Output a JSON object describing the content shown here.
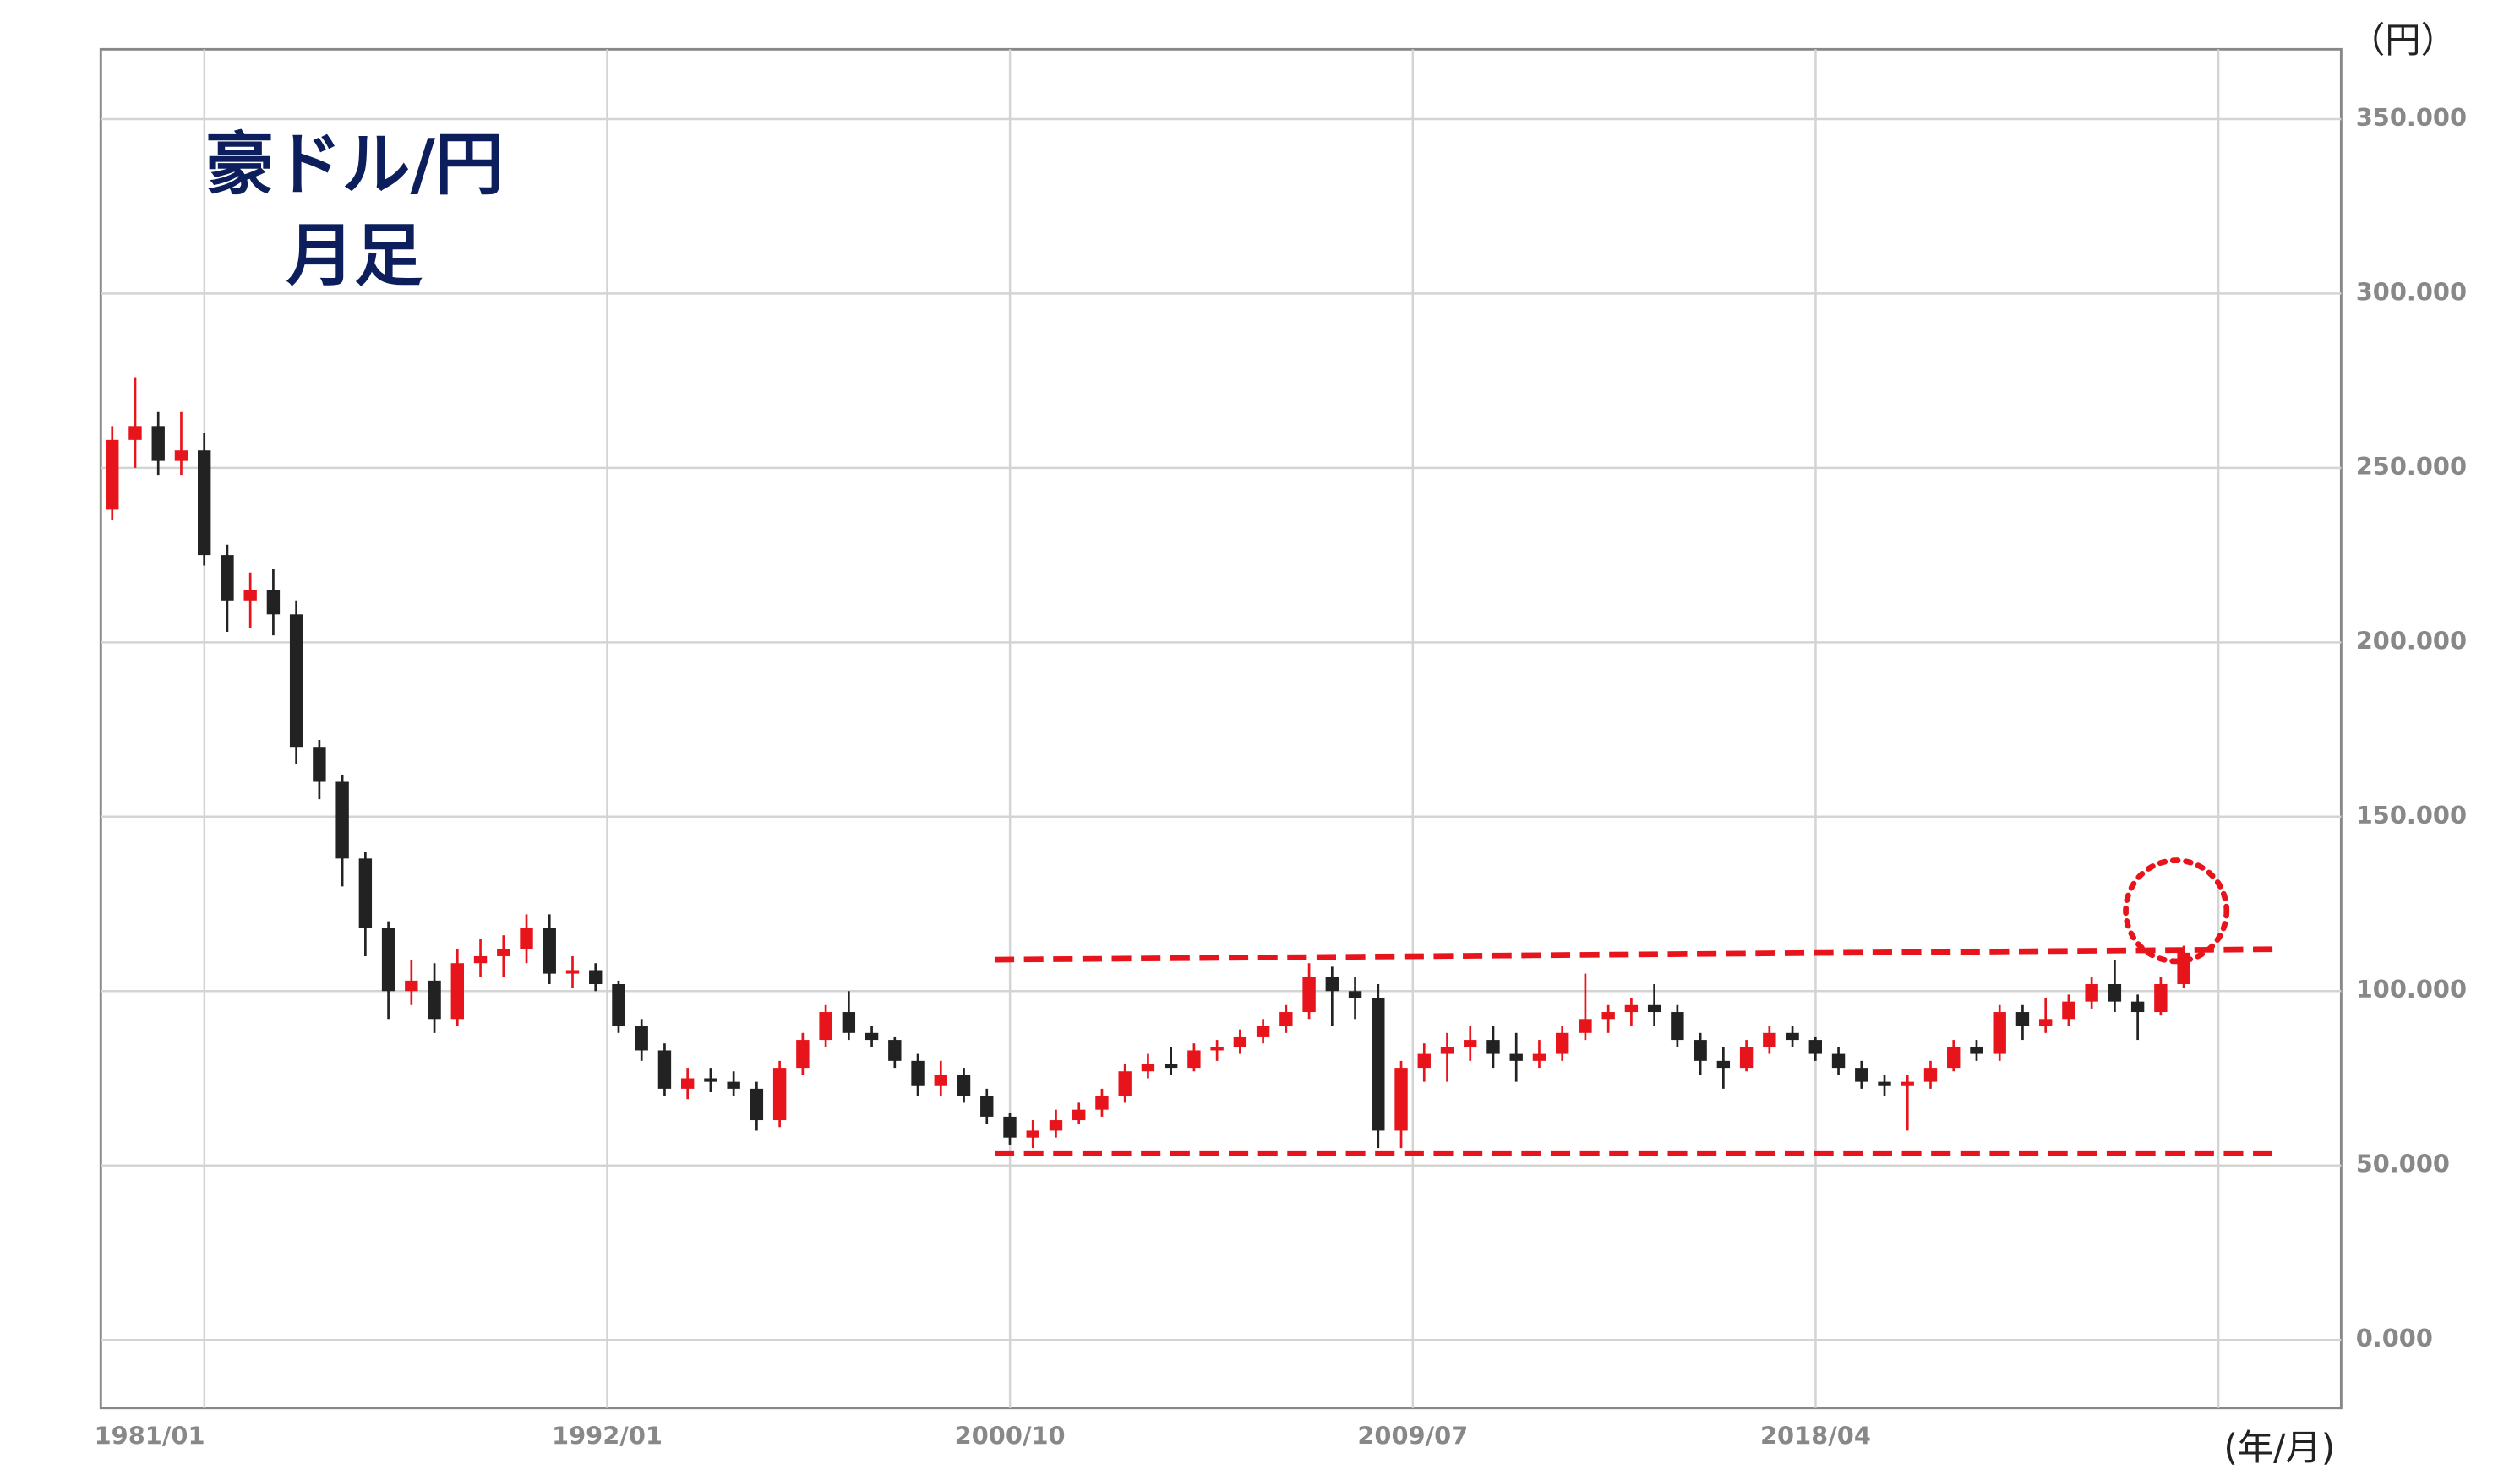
{
  "chart_data": {
    "type": "candlestick",
    "title": [
      "豪ドル/円",
      "月足"
    ],
    "y_unit": "（円）",
    "x_unit": "(年/月)",
    "up_color": "#e8141c",
    "down_color": "#222222",
    "xlim": [
      "1981/01",
      "2029/09"
    ],
    "xticks": [
      "1981/01",
      "1992/01",
      "2000/10",
      "2009/07",
      "2018/04"
    ],
    "xgrid": [
      "1983/04",
      "1992/01",
      "2000/10",
      "2009/07",
      "2018/04",
      "2027/01"
    ],
    "ylim": [
      -19.5,
      370
    ],
    "yticks": [
      {
        "value": 0,
        "label": "0.000"
      },
      {
        "value": 50,
        "label": "50.000"
      },
      {
        "value": 100,
        "label": "100.000"
      },
      {
        "value": 150,
        "label": "150.000"
      },
      {
        "value": 200,
        "label": "200.000"
      },
      {
        "value": 250,
        "label": "250.000"
      },
      {
        "value": 300,
        "label": "300.000"
      },
      {
        "value": 350,
        "label": "350.000"
      }
    ],
    "grid": true,
    "x": [
      "1981/01",
      "1981/07",
      "1982/01",
      "1982/07",
      "1983/01",
      "1983/07",
      "1984/01",
      "1984/07",
      "1985/01",
      "1985/07",
      "1986/01",
      "1986/07",
      "1987/01",
      "1987/07",
      "1988/01",
      "1988/07",
      "1989/01",
      "1989/07",
      "1990/01",
      "1990/07",
      "1991/01",
      "1991/07",
      "1992/01",
      "1992/07",
      "1993/01",
      "1993/07",
      "1994/01",
      "1994/07",
      "1995/01",
      "1995/07",
      "1996/01",
      "1996/07",
      "1997/01",
      "1997/07",
      "1998/01",
      "1998/07",
      "1999/01",
      "1999/07",
      "2000/01",
      "2000/07",
      "2001/01",
      "2001/07",
      "2002/01",
      "2002/07",
      "2003/01",
      "2003/07",
      "2004/01",
      "2004/07",
      "2005/01",
      "2005/07",
      "2006/01",
      "2006/07",
      "2007/01",
      "2007/07",
      "2008/01",
      "2008/07",
      "2009/01",
      "2009/07",
      "2010/01",
      "2010/07",
      "2011/01",
      "2011/07",
      "2012/01",
      "2012/07",
      "2013/01",
      "2013/07",
      "2014/01",
      "2014/07",
      "2015/01",
      "2015/07",
      "2016/01",
      "2016/07",
      "2017/01",
      "2017/07",
      "2018/01",
      "2018/07",
      "2019/01",
      "2019/07",
      "2020/01",
      "2020/07",
      "2021/01",
      "2021/07",
      "2022/01",
      "2022/07",
      "2023/01",
      "2023/07",
      "2024/01",
      "2024/07",
      "2025/01",
      "2025/07",
      "2026/01"
    ],
    "open": [
      238,
      258,
      262,
      252,
      255,
      225,
      212,
      215,
      208,
      170,
      160,
      138,
      118,
      100,
      103,
      92,
      108,
      110,
      112,
      118,
      105,
      106,
      102,
      90,
      83,
      72,
      75,
      74,
      72,
      63,
      78,
      86,
      94,
      88,
      86,
      80,
      73,
      76,
      70,
      64,
      58,
      60,
      63,
      66,
      70,
      77,
      79,
      78,
      83,
      84,
      87,
      90,
      94,
      104,
      100,
      98,
      60,
      78,
      82,
      84,
      86,
      82,
      80,
      82,
      88,
      92,
      94,
      96,
      94,
      86,
      80,
      78,
      84,
      88,
      86,
      82,
      78,
      74,
      73,
      74,
      78,
      84,
      82,
      94,
      90,
      92,
      97,
      102,
      97,
      94,
      102
    ],
    "high": [
      262,
      276,
      266,
      266,
      260,
      228,
      220,
      221,
      212,
      172,
      162,
      140,
      120,
      109,
      108,
      112,
      115,
      116,
      122,
      122,
      110,
      108,
      103,
      92,
      85,
      78,
      78,
      77,
      74,
      80,
      88,
      96,
      100,
      90,
      87,
      82,
      80,
      78,
      72,
      65,
      63,
      66,
      68,
      72,
      79,
      82,
      84,
      85,
      86,
      89,
      92,
      96,
      108,
      107,
      104,
      102,
      80,
      85,
      88,
      90,
      90,
      88,
      86,
      90,
      105,
      96,
      98,
      102,
      96,
      88,
      84,
      86,
      90,
      90,
      87,
      84,
      80,
      76,
      76,
      80,
      86,
      86,
      96,
      96,
      98,
      99,
      104,
      109,
      99,
      104,
      113
    ],
    "low": [
      235,
      250,
      248,
      248,
      222,
      203,
      204,
      202,
      165,
      155,
      130,
      110,
      92,
      96,
      88,
      90,
      104,
      104,
      108,
      102,
      101,
      100,
      88,
      80,
      70,
      69,
      71,
      70,
      60,
      61,
      76,
      84,
      86,
      84,
      78,
      70,
      70,
      68,
      62,
      56,
      55,
      58,
      62,
      64,
      68,
      75,
      76,
      77,
      80,
      82,
      85,
      88,
      92,
      90,
      92,
      55,
      55,
      74,
      74,
      80,
      78,
      74,
      78,
      80,
      86,
      88,
      90,
      90,
      84,
      76,
      72,
      77,
      82,
      84,
      80,
      76,
      72,
      70,
      60,
      72,
      77,
      80,
      80,
      86,
      88,
      90,
      95,
      94,
      86,
      93,
      101
    ],
    "close": [
      258,
      262,
      252,
      255,
      225,
      212,
      215,
      208,
      170,
      160,
      138,
      118,
      100,
      103,
      92,
      108,
      110,
      112,
      118,
      105,
      106,
      102,
      90,
      83,
      72,
      75,
      74,
      72,
      63,
      78,
      86,
      94,
      88,
      86,
      80,
      73,
      76,
      70,
      64,
      58,
      60,
      63,
      66,
      70,
      77,
      79,
      78,
      83,
      84,
      87,
      90,
      94,
      104,
      100,
      98,
      60,
      78,
      82,
      84,
      86,
      82,
      80,
      82,
      88,
      92,
      94,
      96,
      94,
      86,
      80,
      78,
      84,
      88,
      86,
      82,
      78,
      74,
      73,
      74,
      78,
      84,
      82,
      94,
      90,
      92,
      97,
      102,
      97,
      94,
      102,
      111
    ],
    "annotations": {
      "upper_line": {
        "x": [
          "2000/06",
          "2028/04"
        ],
        "y": [
          109,
          112
        ]
      },
      "lower_line": {
        "x": [
          "2000/06",
          "2028/03"
        ],
        "y": [
          53.5,
          53.5
        ]
      },
      "circle": {
        "x": "2026/02",
        "y": 123
      },
      "color": "#e8141c"
    }
  }
}
